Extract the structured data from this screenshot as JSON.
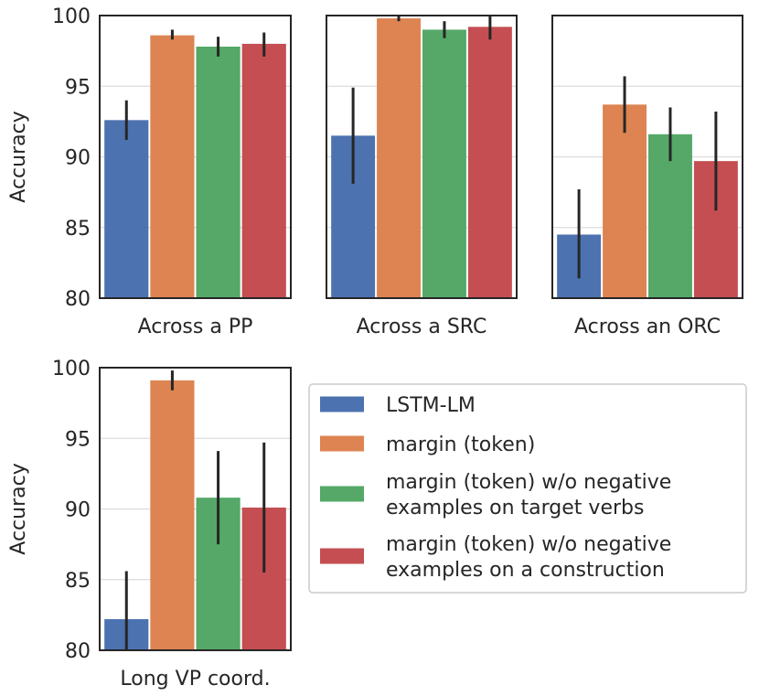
{
  "colors": {
    "LSTM-LM": "#4c72b0",
    "margin (token)": "#dd8452",
    "w/o target verbs": "#55a868",
    "w/o construction": "#c44e52"
  },
  "chart_data": [
    {
      "type": "bar",
      "xlabel": "Across a PP",
      "ylabel": "Accuracy",
      "ylim": [
        80,
        100
      ],
      "yticks": [
        80,
        85,
        90,
        95,
        100
      ],
      "grid": true,
      "series": [
        {
          "value": 92.6,
          "err_low": 91.2,
          "err_high": 94.0
        },
        {
          "value": 98.6,
          "err_low": 98.3,
          "err_high": 99.0
        },
        {
          "value": 97.8,
          "err_low": 97.1,
          "err_high": 98.5
        },
        {
          "value": 98.0,
          "err_low": 97.1,
          "err_high": 98.8
        }
      ]
    },
    {
      "type": "bar",
      "xlabel": "Across a SRC",
      "ylabel": "",
      "ylim": [
        80,
        100
      ],
      "yticks": [
        80,
        85,
        90,
        95,
        100
      ],
      "grid": true,
      "series": [
        {
          "value": 91.5,
          "err_low": 88.1,
          "err_high": 94.9
        },
        {
          "value": 99.8,
          "err_low": 99.6,
          "err_high": 100.0
        },
        {
          "value": 99.0,
          "err_low": 98.4,
          "err_high": 99.6
        },
        {
          "value": 99.2,
          "err_low": 98.3,
          "err_high": 100.0
        }
      ]
    },
    {
      "type": "bar",
      "xlabel": "Across an ORC",
      "ylabel": "",
      "ylim": [
        80,
        100
      ],
      "yticks": [
        80,
        85,
        90,
        95,
        100
      ],
      "grid": true,
      "series": [
        {
          "value": 84.5,
          "err_low": 81.4,
          "err_high": 87.7
        },
        {
          "value": 93.7,
          "err_low": 91.7,
          "err_high": 95.7
        },
        {
          "value": 91.6,
          "err_low": 89.7,
          "err_high": 93.5
        },
        {
          "value": 89.7,
          "err_low": 86.2,
          "err_high": 93.2
        }
      ]
    },
    {
      "type": "bar",
      "xlabel": "Long VP coord.",
      "ylabel": "Accuracy",
      "ylim": [
        80,
        100
      ],
      "yticks": [
        80,
        85,
        90,
        95,
        100
      ],
      "grid": true,
      "series": [
        {
          "value": 82.2,
          "err_low": 80.0,
          "err_high": 85.6
        },
        {
          "value": 99.1,
          "err_low": 98.4,
          "err_high": 99.8
        },
        {
          "value": 90.8,
          "err_low": 87.5,
          "err_high": 94.1
        },
        {
          "value": 90.1,
          "err_low": 85.5,
          "err_high": 94.7
        }
      ]
    }
  ],
  "legend": {
    "placement": "right of bottom-left panel",
    "entries": [
      {
        "lines": [
          "LSTM-LM"
        ]
      },
      {
        "lines": [
          "margin (token)"
        ]
      },
      {
        "lines": [
          "margin (token) w/o negative",
          "examples on target verbs"
        ]
      },
      {
        "lines": [
          "margin (token) w/o negative",
          "examples on a construction"
        ]
      }
    ]
  }
}
